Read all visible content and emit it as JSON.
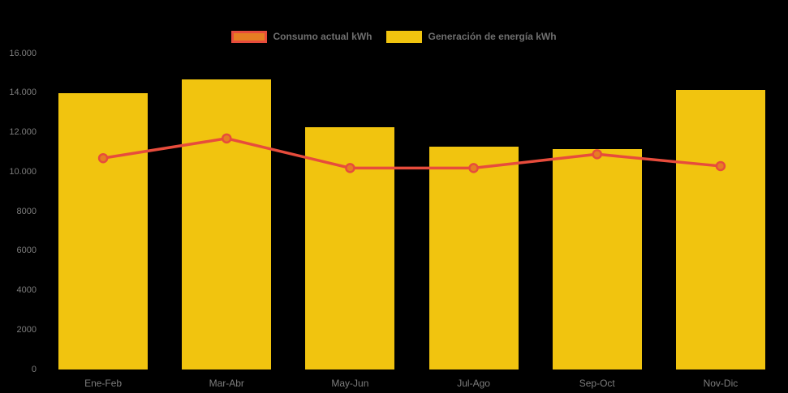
{
  "chart_data": {
    "type": "bar",
    "title": "",
    "xlabel": "",
    "ylabel": "",
    "categories": [
      "Ene-Feb",
      "Mar-Abr",
      "May-Jun",
      "Jul-Ago",
      "Sep-Oct",
      "Nov-Dic"
    ],
    "series": [
      {
        "name": "Consumo actual kWh",
        "type": "line",
        "values": [
          10700,
          11700,
          10200,
          10200,
          10900,
          10300
        ],
        "color": "#e74c3c",
        "point_color": "#e67e22"
      },
      {
        "name": "Generación de energía kWh",
        "type": "bar",
        "values": [
          14000,
          14700,
          12250,
          11300,
          11150,
          14150
        ],
        "color": "#f1c40f"
      }
    ],
    "ylim": [
      0,
      16000
    ],
    "yticks": [
      {
        "value": 0,
        "label": "0"
      },
      {
        "value": 2000,
        "label": "2000"
      },
      {
        "value": 4000,
        "label": "4000"
      },
      {
        "value": 6000,
        "label": "6000"
      },
      {
        "value": 8000,
        "label": "8000"
      },
      {
        "value": 10000,
        "label": "10.000"
      },
      {
        "value": 12000,
        "label": "12.000"
      },
      {
        "value": 14000,
        "label": "14.000"
      },
      {
        "value": 16000,
        "label": "16.000"
      }
    ],
    "grid": false,
    "legend_position": "top-center",
    "background": "#000000",
    "tick_text_color": "#7d7d7d",
    "legend_text_color": "#6f6f6f"
  }
}
